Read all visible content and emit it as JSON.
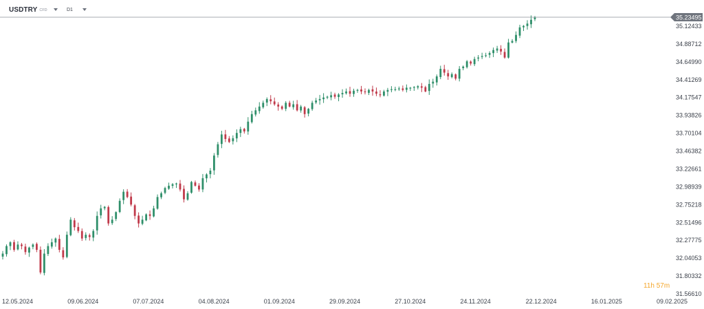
{
  "toolbar": {
    "symbol": "USDTRY",
    "symbol_type": "CFD",
    "timeframe": "D1"
  },
  "countdown": {
    "hours": "11",
    "h_unit": "h",
    "minutes": "57",
    "m_unit": "m"
  },
  "colors": {
    "up": "#2f8f6a",
    "down": "#c03a4a",
    "price_line": "#8a8f99",
    "price_tag_bg": "#6f747d",
    "axis_text": "#3b404a",
    "countdown": "#f4a62a"
  },
  "chart_data": {
    "type": "candlestick",
    "symbol": "USDTRY",
    "timeframe": "D1",
    "current_price": "35.23495",
    "y_ticks": [
      "35.12433",
      "34.88712",
      "34.64990",
      "34.41269",
      "34.17547",
      "33.93826",
      "33.70104",
      "33.46382",
      "33.22661",
      "32.98939",
      "32.75218",
      "32.51496",
      "32.27775",
      "32.04053",
      "31.80332",
      "31.56610"
    ],
    "x_ticks": [
      "12.05.2024",
      "09.06.2024",
      "07.07.2024",
      "04.08.2024",
      "01.09.2024",
      "29.09.2024",
      "27.10.2024",
      "24.11.2024",
      "22.12.2024",
      "16.01.2025",
      "09.02.2025"
    ],
    "ylim": [
      31.5661,
      35.2349
    ],
    "closes": [
      32.1,
      32.2,
      32.25,
      32.15,
      32.22,
      32.2,
      32.12,
      32.18,
      32.22,
      32.15,
      31.85,
      32.1,
      32.2,
      32.25,
      32.3,
      32.15,
      32.05,
      32.35,
      32.55,
      32.45,
      32.4,
      32.3,
      32.35,
      32.32,
      32.4,
      32.6,
      32.7,
      32.72,
      32.5,
      32.55,
      32.65,
      32.8,
      32.92,
      32.85,
      32.75,
      32.6,
      32.5,
      32.55,
      32.62,
      32.6,
      32.7,
      32.85,
      32.9,
      32.97,
      33.0,
      33.02,
      33.03,
      32.95,
      32.82,
      32.9,
      33.05,
      33.0,
      32.95,
      33.1,
      33.15,
      33.2,
      33.4,
      33.55,
      33.68,
      33.62,
      33.58,
      33.63,
      33.7,
      33.75,
      33.72,
      33.85,
      33.95,
      34.0,
      34.05,
      34.1,
      34.15,
      34.12,
      34.08,
      34.05,
      34.02,
      34.1,
      34.05,
      34.08,
      34.0,
      34.05,
      33.95,
      34.02,
      34.1,
      34.13,
      34.15,
      34.17,
      34.18,
      34.2,
      34.18,
      34.21,
      34.23,
      34.25,
      34.22,
      34.26,
      34.27,
      34.25,
      34.24,
      34.27,
      34.25,
      34.22,
      34.2,
      34.25,
      34.27,
      34.28,
      34.28,
      34.29,
      34.27,
      34.3,
      34.3,
      34.31,
      34.32,
      34.3,
      34.25,
      34.35,
      34.38,
      34.45,
      34.55,
      34.5,
      34.45,
      34.48,
      34.42,
      34.55,
      34.58,
      34.65,
      34.62,
      34.68,
      34.7,
      34.72,
      34.73,
      34.76,
      34.8,
      34.82,
      34.78,
      34.7,
      34.9,
      34.92,
      35.0,
      35.1,
      35.12,
      35.15,
      35.2,
      35.23
    ]
  }
}
